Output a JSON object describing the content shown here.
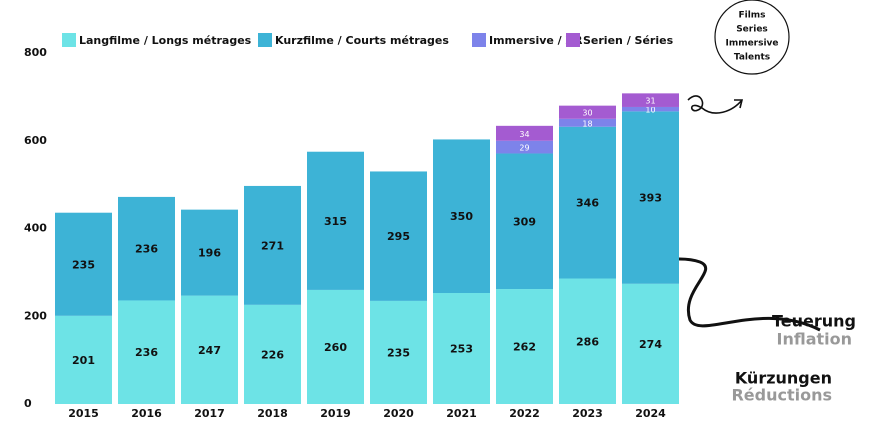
{
  "chart_data": {
    "type": "stacked-bar",
    "categories": [
      "2015",
      "2016",
      "2017",
      "2018",
      "2019",
      "2020",
      "2021",
      "2022",
      "2023",
      "2024"
    ],
    "series": [
      {
        "name": "Langfilme / Longs métrages",
        "color": "#6de3e6",
        "values": [
          201,
          236,
          247,
          226,
          260,
          235,
          253,
          262,
          286,
          274
        ]
      },
      {
        "name": "Kurzfilme / Courts métrages",
        "color": "#3db3d6",
        "values": [
          235,
          236,
          196,
          271,
          315,
          295,
          350,
          309,
          346,
          393
        ]
      },
      {
        "name": "Immersive / XR",
        "color": "#7d83ea",
        "values": [
          null,
          null,
          null,
          null,
          null,
          null,
          null,
          29,
          18,
          10
        ]
      },
      {
        "name": "Serien / Séries",
        "color": "#a45bd1",
        "values": [
          null,
          null,
          null,
          null,
          null,
          null,
          null,
          34,
          30,
          31
        ]
      }
    ],
    "ylim": [
      0,
      800
    ],
    "yticks": [
      0,
      200,
      400,
      600,
      800
    ],
    "grid": false,
    "annotations": {
      "circle": [
        "Films",
        "Series",
        "Immersive",
        "Talents"
      ],
      "inflation": [
        "Teuerung",
        "Inflation"
      ],
      "cuts": [
        "Kürzungen",
        "Réductions"
      ]
    }
  }
}
